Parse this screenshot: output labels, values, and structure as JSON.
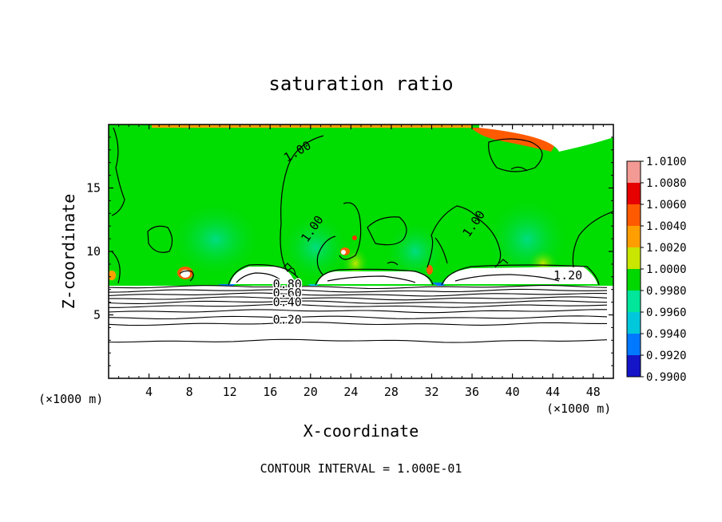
{
  "chart_data": {
    "type": "heatmap",
    "title": "saturation ratio",
    "xlabel": "X-coordinate",
    "ylabel": "Z-coordinate",
    "x_unit_left": "(×1000 m)",
    "x_unit_right": "(×1000 m)",
    "xlim": [
      0,
      50
    ],
    "ylim": [
      0,
      20
    ],
    "x_ticks": [
      4,
      8,
      12,
      16,
      20,
      24,
      28,
      32,
      36,
      40,
      44,
      48
    ],
    "x_tick_labels": [
      "4",
      "8",
      "12",
      "16",
      "20",
      "24",
      "28",
      "32",
      "36",
      "40",
      "44",
      "48"
    ],
    "y_ticks": [
      5,
      10,
      15
    ],
    "y_tick_labels": [
      "5",
      "10",
      "15"
    ],
    "footer": "CONTOUR INTERVAL = 1.000E-01",
    "colorbar": {
      "labels": [
        "1.0100",
        "1.0080",
        "1.0060",
        "1.0040",
        "1.0020",
        "1.0000",
        "0.9980",
        "0.9960",
        "0.9940",
        "0.9920",
        "0.9900"
      ],
      "values": [
        1.01,
        1.008,
        1.006,
        1.004,
        1.002,
        1.0,
        0.998,
        0.996,
        0.994,
        0.992,
        0.99
      ],
      "colors": [
        "#f49a94",
        "#e60000",
        "#ff5a00",
        "#ff9e00",
        "#c8e600",
        "#00d800",
        "#00e69a",
        "#00c8dc",
        "#0078ff",
        "#1414c8",
        "#5a0096"
      ]
    },
    "contour_labels": [
      {
        "text": "1.00",
        "x": 18.9,
        "z": 17.6
      },
      {
        "text": "1.00",
        "x": 20.5,
        "z": 11.6
      },
      {
        "text": "1.00",
        "x": 36.5,
        "z": 12.0
      },
      {
        "text": "1.20",
        "x": 45.5,
        "z": 7.8
      },
      {
        "text": "0.80",
        "x": 17.7,
        "z": 7.1
      },
      {
        "text": "0.60",
        "x": 17.7,
        "z": 6.4
      },
      {
        "text": "0.40",
        "x": 17.7,
        "z": 5.7
      },
      {
        "text": "0.20",
        "x": 17.7,
        "z": 4.3
      }
    ],
    "stable_contour_levels_z": [
      7.2,
      6.9,
      6.6,
      6.3,
      6.0,
      5.7,
      5.3,
      4.8,
      4.3,
      2.95
    ],
    "saturated_cloud_regions": [
      {
        "x": [
          12,
          18.5
        ],
        "z": [
          7.5,
          8.9
        ]
      },
      {
        "x": [
          21,
          31
        ],
        "z": [
          7.5,
          8.6
        ]
      },
      {
        "x": [
          34,
          48.5
        ],
        "z": [
          7.5,
          8.8
        ]
      },
      {
        "x": [
          38,
          50
        ],
        "z": [
          18.2,
          19.9
        ]
      }
    ],
    "grid": false
  }
}
